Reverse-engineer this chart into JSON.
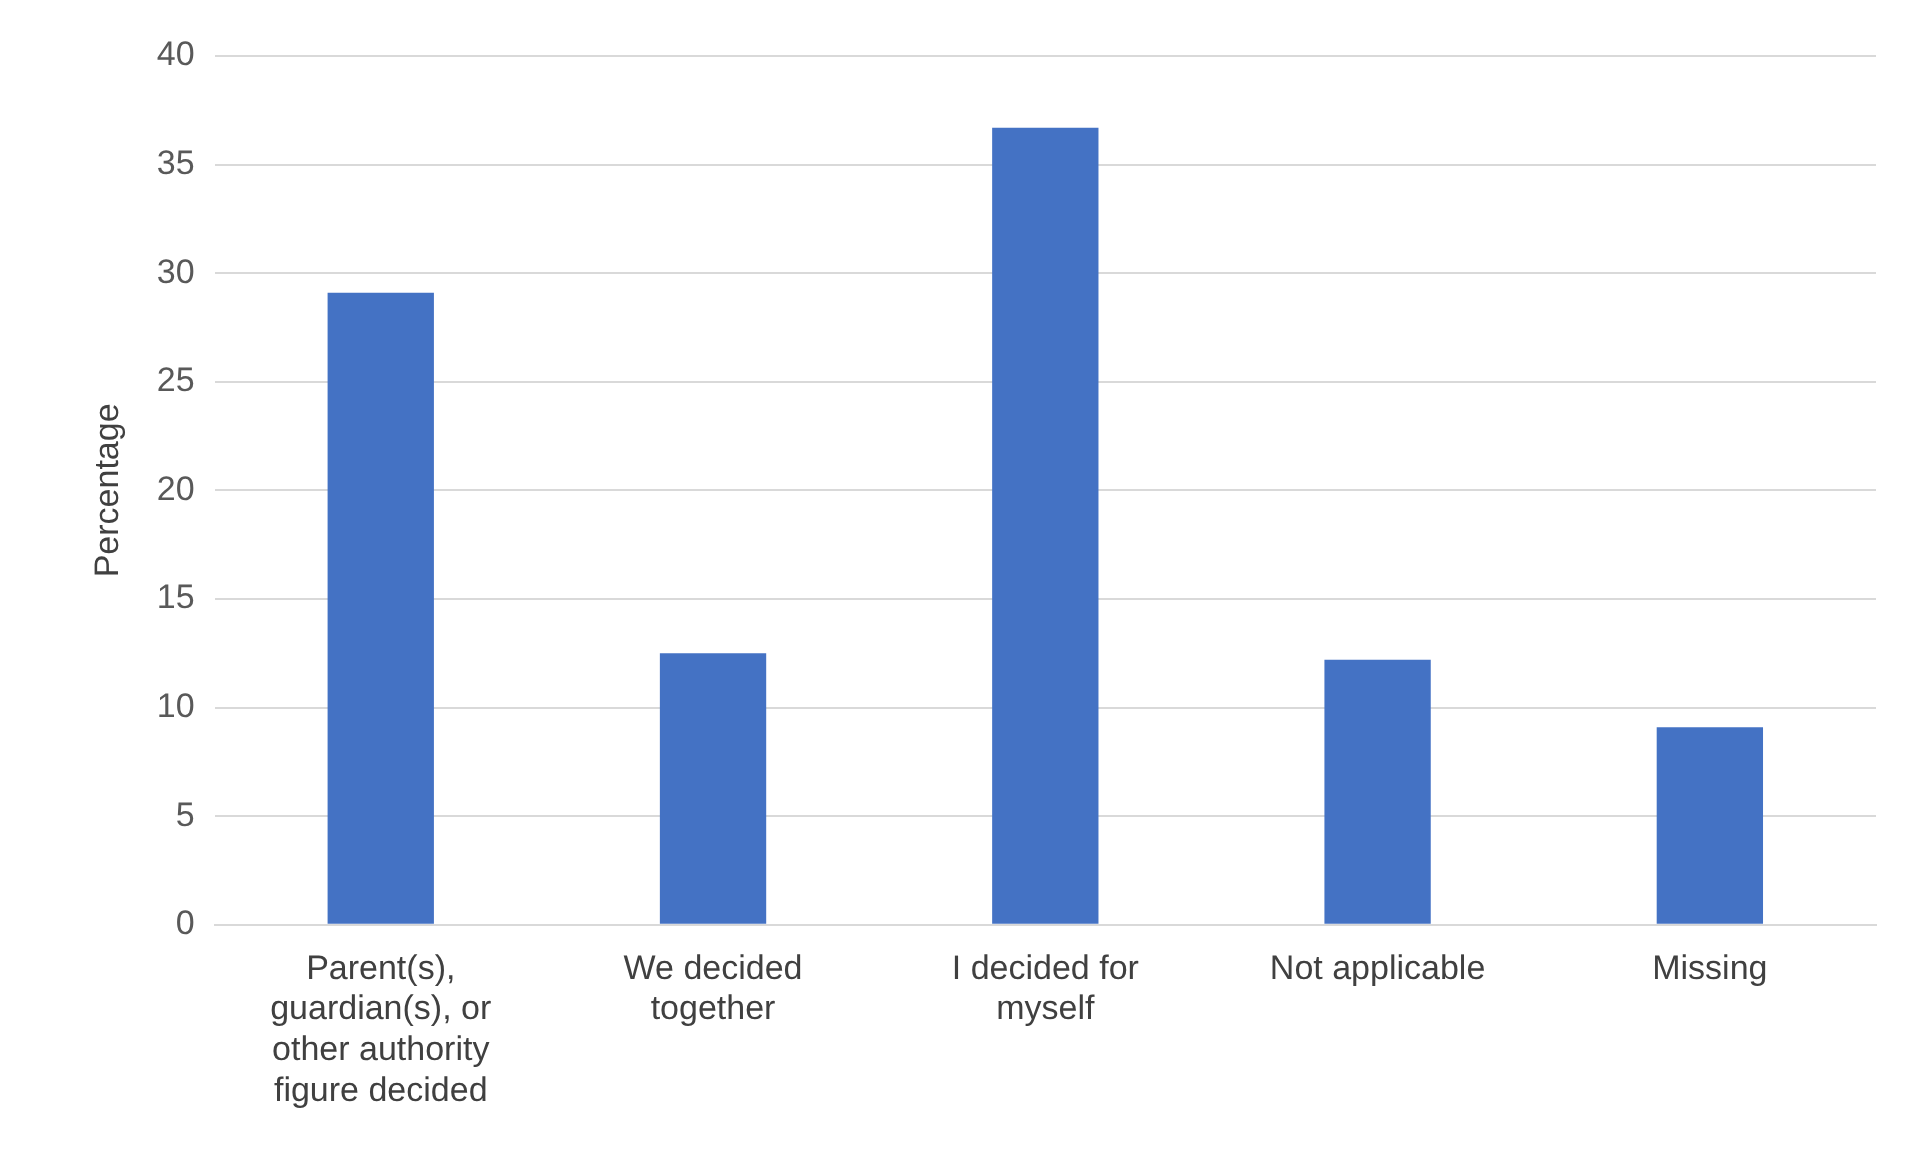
{
  "chart_data": {
    "type": "bar",
    "ylabel": "Percentage",
    "categories": [
      "Parent(s), guardian(s), or other authority figure decided",
      "We decided together",
      "I decided for myself",
      "Not applicable",
      "Missing"
    ],
    "values": [
      29.1,
      12.5,
      36.7,
      12.2,
      9.1
    ],
    "color": "#4472c4",
    "ylim": [
      0,
      40
    ],
    "yticks": [
      0,
      5,
      10,
      15,
      20,
      25,
      30,
      35,
      40
    ],
    "grid": "y",
    "legend": false
  }
}
